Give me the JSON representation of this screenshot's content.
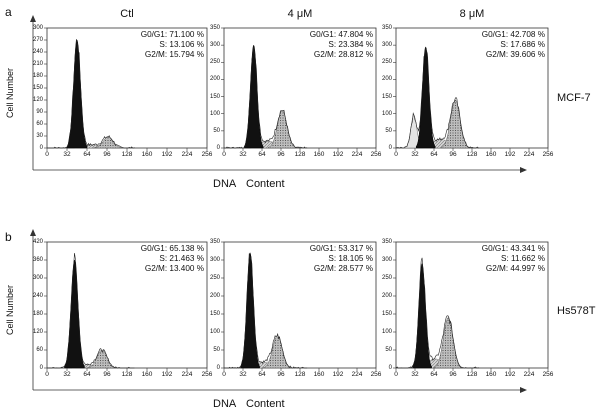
{
  "figure": {
    "conditions": [
      "Ctl",
      "4 μM",
      "8 μM"
    ],
    "x_axis_label_words": [
      "DNA",
      "Content"
    ],
    "y_axis_label": "Cell Number",
    "x_ticks": [
      "0",
      "32",
      "64",
      "96",
      "128",
      "160",
      "192",
      "224",
      "256"
    ]
  },
  "chart_data": [
    {
      "panel": "a",
      "cell_line": "MCF-7",
      "type": "histogram",
      "xlabel": "DNA Content",
      "ylabel": "Cell Number",
      "xlim": [
        0,
        256
      ],
      "plots": [
        {
          "condition": "Ctl",
          "G0G1": "G0/G1: 71.100 %",
          "S": "S: 13.106 %",
          "G2M": "G2/M: 15.794 %",
          "yticks": [
            "0",
            "30",
            "60",
            "90",
            "120",
            "150",
            "180",
            "210",
            "240",
            "270",
            "300"
          ],
          "ymax": 300,
          "g1_peak": {
            "x": 48,
            "y": 270
          },
          "g2_peak": {
            "x": 98,
            "y": 28
          },
          "subg1": 0
        },
        {
          "condition": "4 μM",
          "G0G1": "G0/G1: 47.804 %",
          "S": "S: 23.384 %",
          "G2M": "G2/M: 28.812 %",
          "yticks": [
            "0",
            "50",
            "100",
            "150",
            "200",
            "250",
            "300",
            "350"
          ],
          "ymax": 350,
          "g1_peak": {
            "x": 50,
            "y": 300
          },
          "g2_peak": {
            "x": 98,
            "y": 110
          },
          "subg1": 0
        },
        {
          "condition": "8 μM",
          "G0G1": "G0/G1: 42.708 %",
          "S": "S: 17.686 %",
          "G2M": "G2/M: 39.606 %",
          "yticks": [
            "0",
            "50",
            "100",
            "150",
            "200",
            "250",
            "300",
            "350"
          ],
          "ymax": 350,
          "g1_peak": {
            "x": 50,
            "y": 295
          },
          "g2_peak": {
            "x": 100,
            "y": 140
          },
          "subg1": 95
        }
      ]
    },
    {
      "panel": "b",
      "cell_line": "Hs578T",
      "type": "histogram",
      "xlabel": "DNA Content",
      "ylabel": "Cell Number",
      "xlim": [
        0,
        256
      ],
      "plots": [
        {
          "condition": "Ctl",
          "G0G1": "G0/G1: 65.138 %",
          "S": "S: 21.463 %",
          "G2M": "G2/M: 13.400 %",
          "yticks": [
            "0",
            "60",
            "120",
            "180",
            "240",
            "300",
            "360",
            "420"
          ],
          "ymax": 420,
          "g1_peak": {
            "x": 44,
            "y": 360
          },
          "g2_peak": {
            "x": 88,
            "y": 60
          },
          "subg1": 0
        },
        {
          "condition": "4 μM",
          "G0G1": "G0/G1: 53.317 %",
          "S": "S: 18.105 %",
          "G2M": "G2/M: 28.577 %",
          "yticks": [
            "0",
            "50",
            "100",
            "150",
            "200",
            "250",
            "300",
            "350"
          ],
          "ymax": 350,
          "g1_peak": {
            "x": 44,
            "y": 320
          },
          "g2_peak": {
            "x": 90,
            "y": 90
          },
          "subg1": 0
        },
        {
          "condition": "8 μM",
          "G0G1": "G0/G1: 43.341 %",
          "S": "S: 11.662 %",
          "G2M": "G2/M: 44.997 %",
          "yticks": [
            "0",
            "50",
            "100",
            "150",
            "200",
            "250",
            "300",
            "350"
          ],
          "ymax": 350,
          "g1_peak": {
            "x": 44,
            "y": 290
          },
          "g2_peak": {
            "x": 88,
            "y": 140
          },
          "subg1": 0
        }
      ]
    }
  ]
}
